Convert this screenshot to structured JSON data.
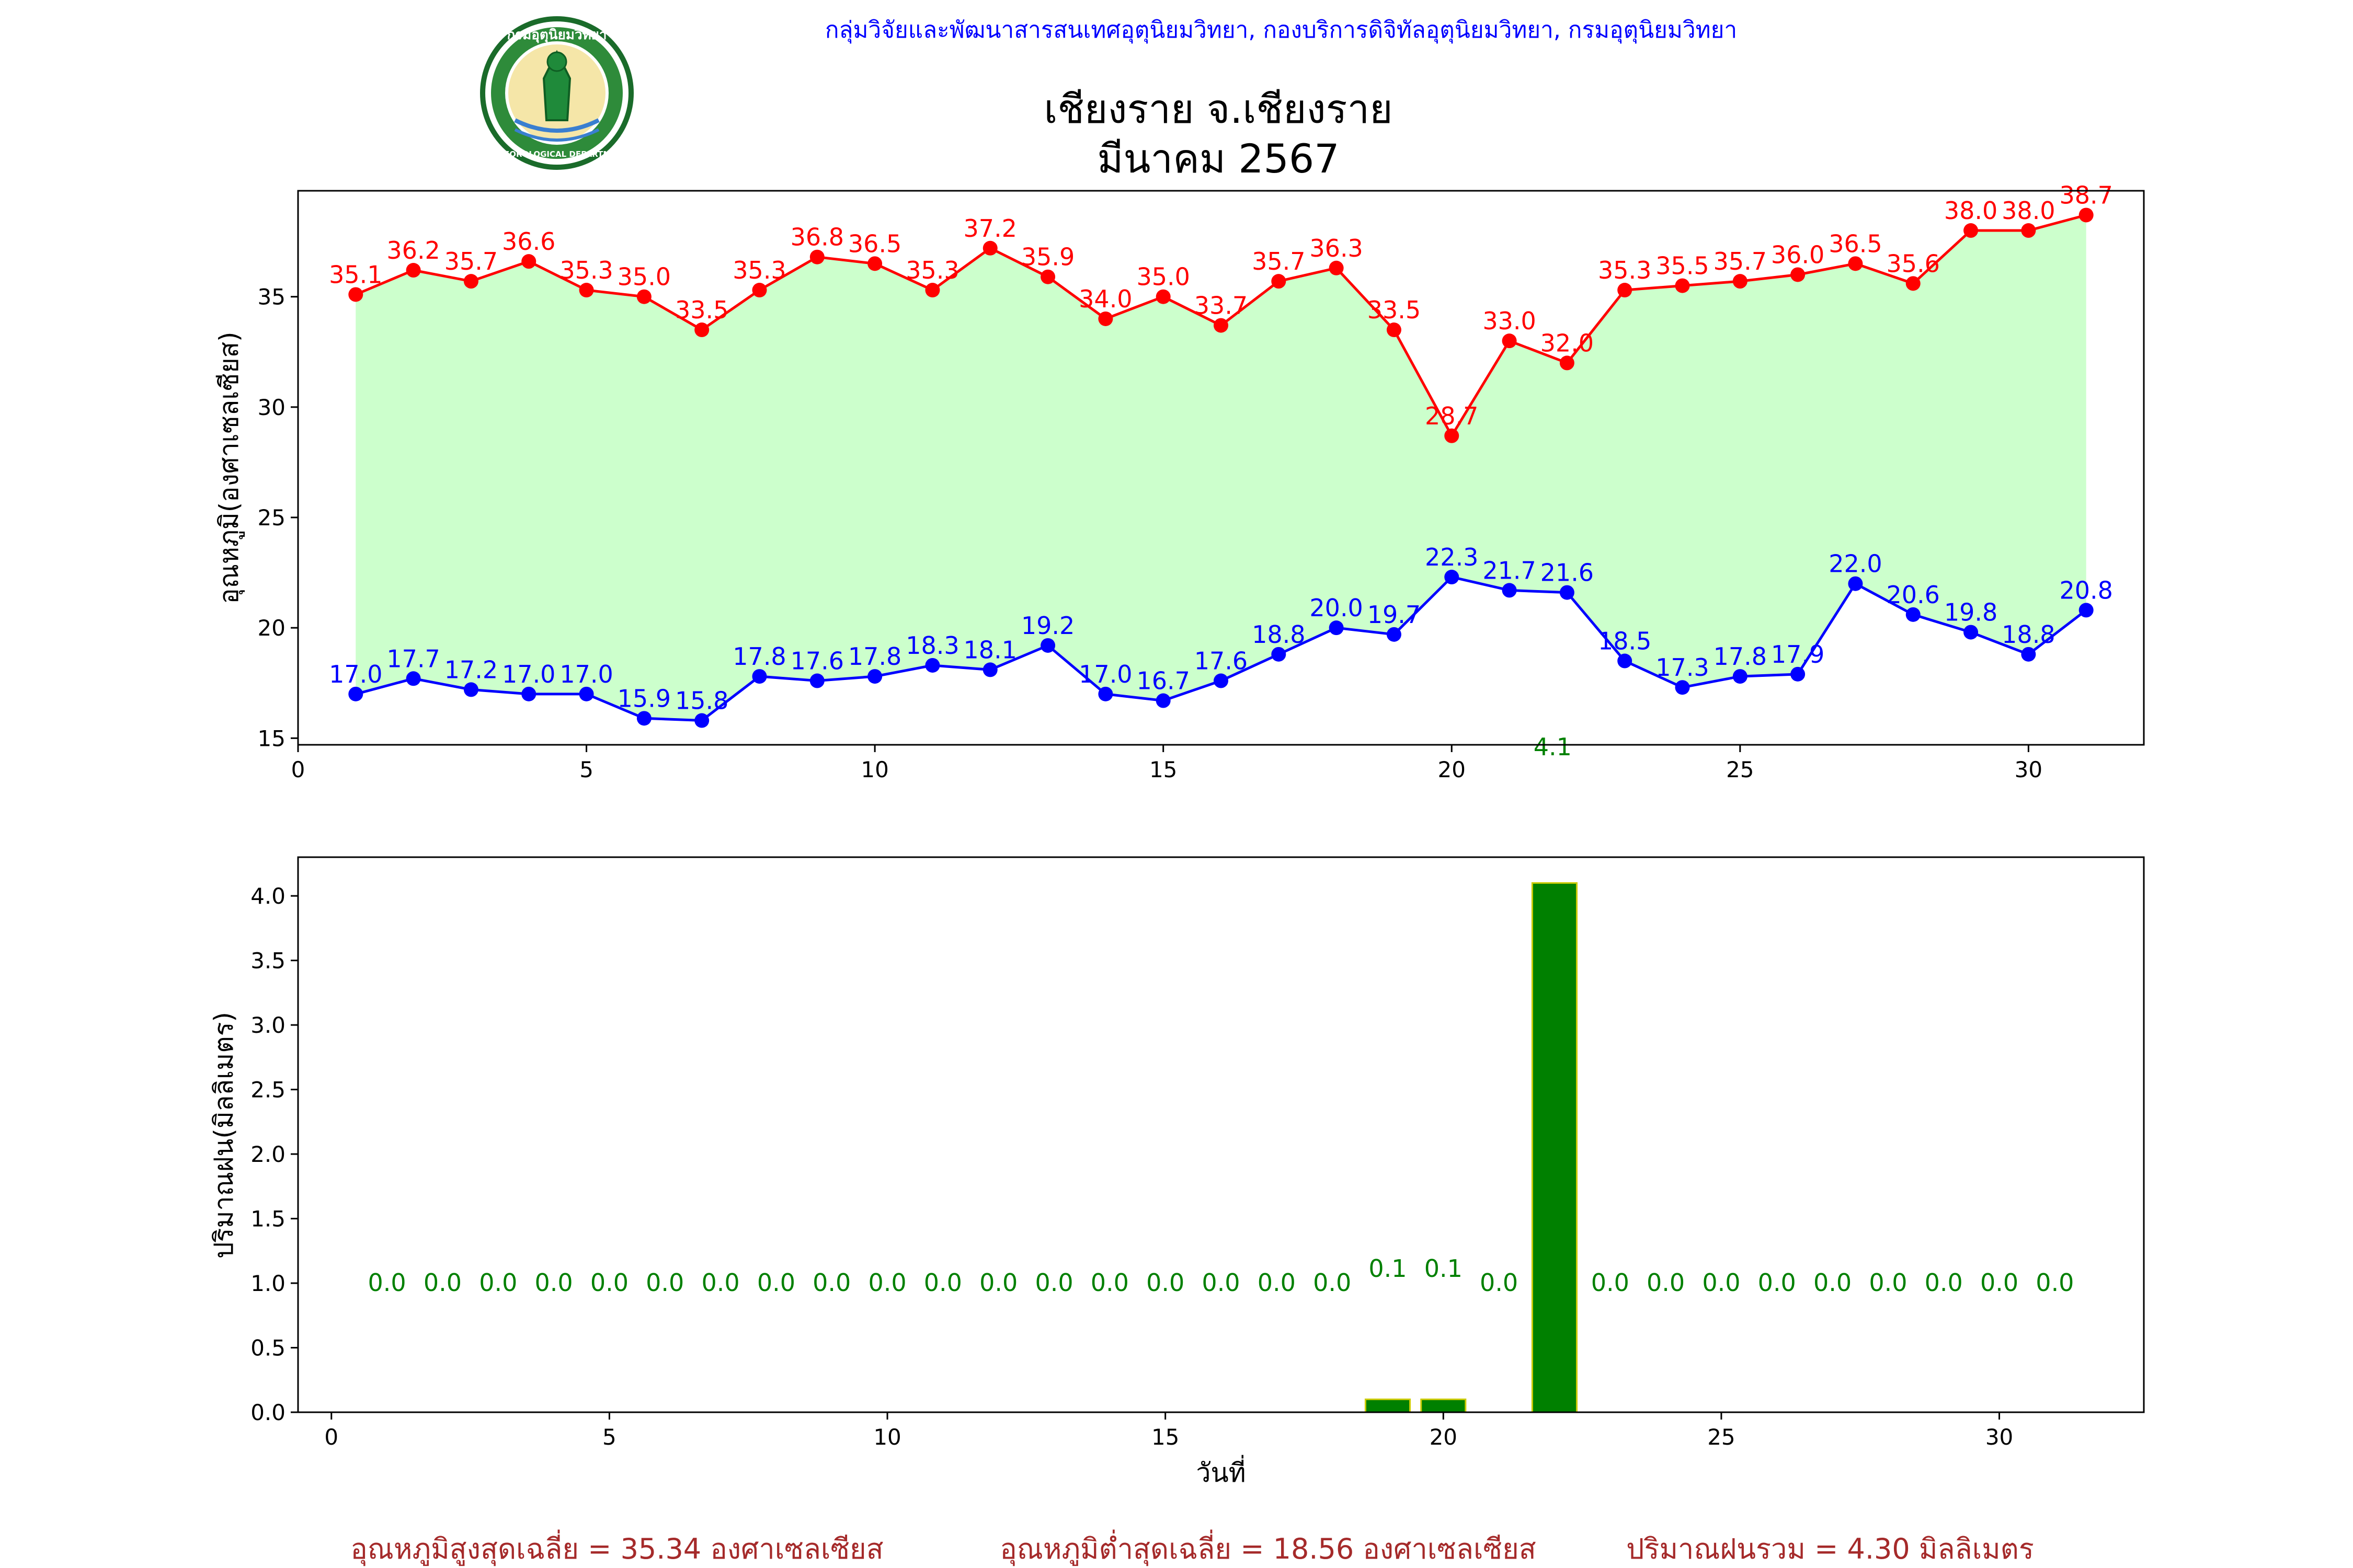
{
  "header": {
    "org_line": "กลุ่มวิจัยและพัฒนาสารสนเทศอุตุนิยมวิทยา, กองบริการดิจิทัลอุตุนิยมวิทยา, กรมอุตุนิยมวิทยา",
    "title_line1": "เชียงราย จ.เชียงราย",
    "title_line2": "มีนาคม 2567",
    "logo_text": "กรมอุตุนิยมวิทยา",
    "logo_text_en": "METEOROLOGICAL DEPARTMENT"
  },
  "colors": {
    "max": "#ff0000",
    "min": "#0000ff",
    "fill": "#ccffcc",
    "rain": "#008000",
    "rain_edge": "#cccc00",
    "org": "#0000ff",
    "summary": "#a52a2a"
  },
  "chart_data": [
    {
      "type": "line",
      "ylabel": "อุณหภูมิ(องศาเซลเซียส)",
      "xlim": [
        0,
        32
      ],
      "ylim": [
        14.7,
        39.8
      ],
      "xticks": [
        0,
        5,
        10,
        15,
        20,
        25,
        30
      ],
      "yticks": [
        15,
        20,
        25,
        30,
        35
      ],
      "x": [
        1,
        2,
        3,
        4,
        5,
        6,
        7,
        8,
        9,
        10,
        11,
        12,
        13,
        14,
        15,
        16,
        17,
        18,
        19,
        20,
        21,
        22,
        23,
        24,
        25,
        26,
        27,
        28,
        29,
        30,
        31
      ],
      "series": [
        {
          "key": "max",
          "values": [
            35.1,
            36.2,
            35.7,
            36.6,
            35.3,
            35.0,
            33.5,
            35.3,
            36.8,
            36.5,
            35.3,
            37.2,
            35.9,
            34.0,
            35.0,
            33.7,
            35.7,
            36.3,
            33.5,
            28.7,
            33.0,
            32.0,
            35.3,
            35.5,
            35.7,
            36.0,
            36.5,
            35.6,
            38.0,
            38.0,
            38.7
          ]
        },
        {
          "key": "min",
          "values": [
            17.0,
            17.7,
            17.2,
            17.0,
            17.0,
            15.9,
            15.8,
            17.8,
            17.6,
            17.8,
            18.3,
            18.1,
            19.2,
            17.0,
            16.7,
            17.6,
            18.8,
            20.0,
            19.7,
            22.3,
            21.7,
            21.6,
            18.5,
            17.3,
            17.8,
            17.9,
            22.0,
            20.6,
            19.8,
            18.8,
            20.8
          ]
        }
      ],
      "annotation": {
        "text": "4.1",
        "x": 21.75,
        "y": 14.7
      }
    },
    {
      "type": "bar",
      "ylabel": "ปริมาณฝน(มิลลิเมตร)",
      "xlabel": "วันที่",
      "xlim": [
        -0.6,
        32.6
      ],
      "ylim": [
        0,
        4.3
      ],
      "xticks": [
        0,
        5,
        10,
        15,
        20,
        25,
        30
      ],
      "yticks": [
        0.0,
        0.5,
        1.0,
        1.5,
        2.0,
        2.5,
        3.0,
        3.5,
        4.0
      ],
      "x": [
        1,
        2,
        3,
        4,
        5,
        6,
        7,
        8,
        9,
        10,
        11,
        12,
        13,
        14,
        15,
        16,
        17,
        18,
        19,
        20,
        21,
        22,
        23,
        24,
        25,
        26,
        27,
        28,
        29,
        30,
        31
      ],
      "values": [
        0.0,
        0.0,
        0.0,
        0.0,
        0.0,
        0.0,
        0.0,
        0.0,
        0.0,
        0.0,
        0.0,
        0.0,
        0.0,
        0.0,
        0.0,
        0.0,
        0.0,
        0.0,
        0.1,
        0.1,
        0.0,
        4.1,
        0.0,
        0.0,
        0.0,
        0.0,
        0.0,
        0.0,
        0.0,
        0.0,
        0.0
      ]
    }
  ],
  "summary": {
    "avg_max": "อุณหภูมิสูงสุดเฉลี่ย = 35.34 องศาเซลเซียส",
    "avg_min": "อุณหภูมิต่ำสุดเฉลี่ย = 18.56 องศาเซลเซียส",
    "rain_total": "ปริมาณฝนรวม = 4.30 มิลลิเมตร"
  }
}
